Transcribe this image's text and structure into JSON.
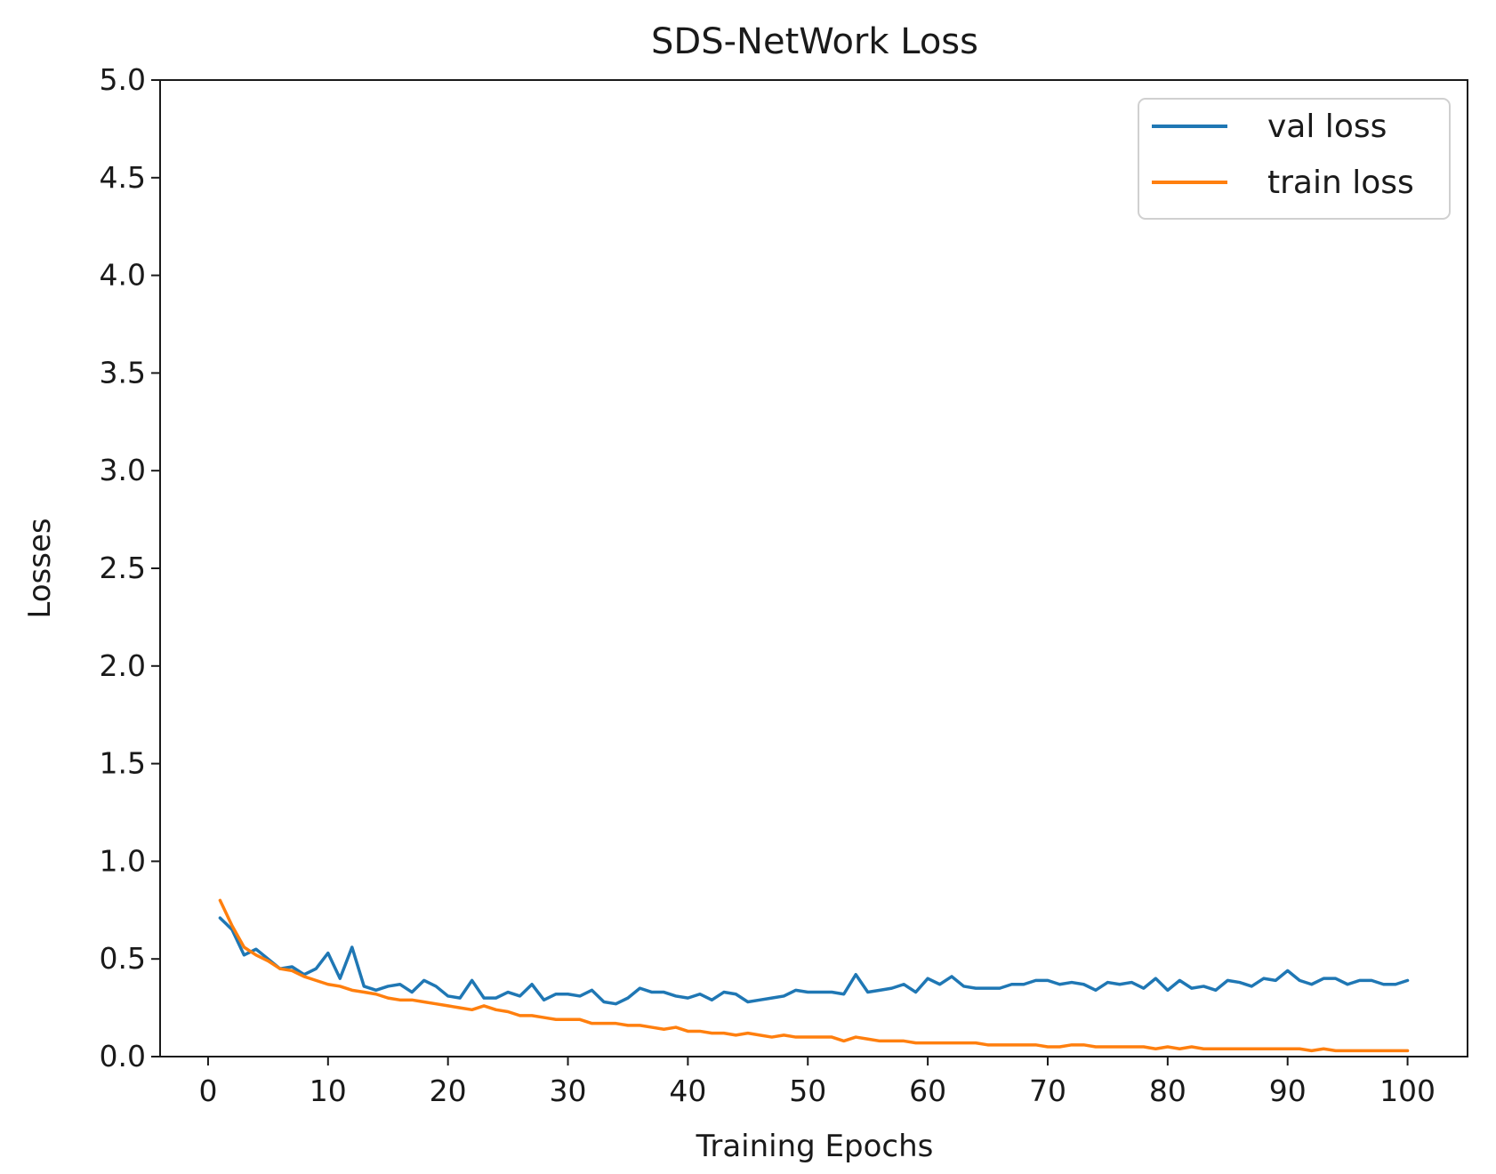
{
  "chart_data": {
    "type": "line",
    "title": "SDS-NetWork Loss",
    "xlabel": "Training Epochs",
    "ylabel": "Losses",
    "xlim": [
      -4,
      105
    ],
    "ylim": [
      0,
      5.0
    ],
    "xticks": [
      0,
      10,
      20,
      30,
      40,
      50,
      60,
      70,
      80,
      90,
      100
    ],
    "xtick_labels": [
      "0",
      "10",
      "20",
      "30",
      "40",
      "50",
      "60",
      "70",
      "80",
      "90",
      "100"
    ],
    "yticks": [
      0,
      0.5,
      1.0,
      1.5,
      2.0,
      2.5,
      3.0,
      3.5,
      4.0,
      4.5,
      5.0
    ],
    "ytick_labels": [
      "0.0",
      "0.5",
      "1.0",
      "1.5",
      "2.0",
      "2.5",
      "3.0",
      "3.5",
      "4.0",
      "4.5",
      "5.0"
    ],
    "legend_position": "top-right",
    "grid": false,
    "x": [
      1,
      2,
      3,
      4,
      5,
      6,
      7,
      8,
      9,
      10,
      11,
      12,
      13,
      14,
      15,
      16,
      17,
      18,
      19,
      20,
      21,
      22,
      23,
      24,
      25,
      26,
      27,
      28,
      29,
      30,
      31,
      32,
      33,
      34,
      35,
      36,
      37,
      38,
      39,
      40,
      41,
      42,
      43,
      44,
      45,
      46,
      47,
      48,
      49,
      50,
      51,
      52,
      53,
      54,
      55,
      56,
      57,
      58,
      59,
      60,
      61,
      62,
      63,
      64,
      65,
      66,
      67,
      68,
      69,
      70,
      71,
      72,
      73,
      74,
      75,
      76,
      77,
      78,
      79,
      80,
      81,
      82,
      83,
      84,
      85,
      86,
      87,
      88,
      89,
      90,
      91,
      92,
      93,
      94,
      95,
      96,
      97,
      98,
      99,
      100
    ],
    "series": [
      {
        "name": "val loss",
        "color": "#1f77b4",
        "values": [
          0.71,
          0.65,
          0.52,
          0.55,
          0.5,
          0.45,
          0.46,
          0.42,
          0.45,
          0.53,
          0.4,
          0.56,
          0.36,
          0.34,
          0.36,
          0.37,
          0.33,
          0.39,
          0.36,
          0.31,
          0.3,
          0.39,
          0.3,
          0.3,
          0.33,
          0.31,
          0.37,
          0.29,
          0.32,
          0.32,
          0.31,
          0.34,
          0.28,
          0.27,
          0.3,
          0.35,
          0.33,
          0.33,
          0.31,
          0.3,
          0.32,
          0.29,
          0.33,
          0.32,
          0.28,
          0.29,
          0.3,
          0.31,
          0.34,
          0.33,
          0.33,
          0.33,
          0.32,
          0.42,
          0.33,
          0.34,
          0.35,
          0.37,
          0.33,
          0.4,
          0.37,
          0.41,
          0.36,
          0.35,
          0.35,
          0.35,
          0.37,
          0.37,
          0.39,
          0.39,
          0.37,
          0.38,
          0.37,
          0.34,
          0.38,
          0.37,
          0.38,
          0.35,
          0.4,
          0.34,
          0.39,
          0.35,
          0.36,
          0.34,
          0.39,
          0.38,
          0.36,
          0.4,
          0.39,
          0.44,
          0.39,
          0.37,
          0.4,
          0.4,
          0.37,
          0.39,
          0.39,
          0.37,
          0.37,
          0.39
        ]
      },
      {
        "name": "train loss",
        "color": "#ff7f0e",
        "values": [
          0.8,
          0.67,
          0.56,
          0.52,
          0.49,
          0.45,
          0.44,
          0.41,
          0.39,
          0.37,
          0.36,
          0.34,
          0.33,
          0.32,
          0.3,
          0.29,
          0.29,
          0.28,
          0.27,
          0.26,
          0.25,
          0.24,
          0.26,
          0.24,
          0.23,
          0.21,
          0.21,
          0.2,
          0.19,
          0.19,
          0.19,
          0.17,
          0.17,
          0.17,
          0.16,
          0.16,
          0.15,
          0.14,
          0.15,
          0.13,
          0.13,
          0.12,
          0.12,
          0.11,
          0.12,
          0.11,
          0.1,
          0.11,
          0.1,
          0.1,
          0.1,
          0.1,
          0.08,
          0.1,
          0.09,
          0.08,
          0.08,
          0.08,
          0.07,
          0.07,
          0.07,
          0.07,
          0.07,
          0.07,
          0.06,
          0.06,
          0.06,
          0.06,
          0.06,
          0.05,
          0.05,
          0.06,
          0.06,
          0.05,
          0.05,
          0.05,
          0.05,
          0.05,
          0.04,
          0.05,
          0.04,
          0.05,
          0.04,
          0.04,
          0.04,
          0.04,
          0.04,
          0.04,
          0.04,
          0.04,
          0.04,
          0.03,
          0.04,
          0.03,
          0.03,
          0.03,
          0.03,
          0.03,
          0.03,
          0.03
        ]
      }
    ]
  }
}
